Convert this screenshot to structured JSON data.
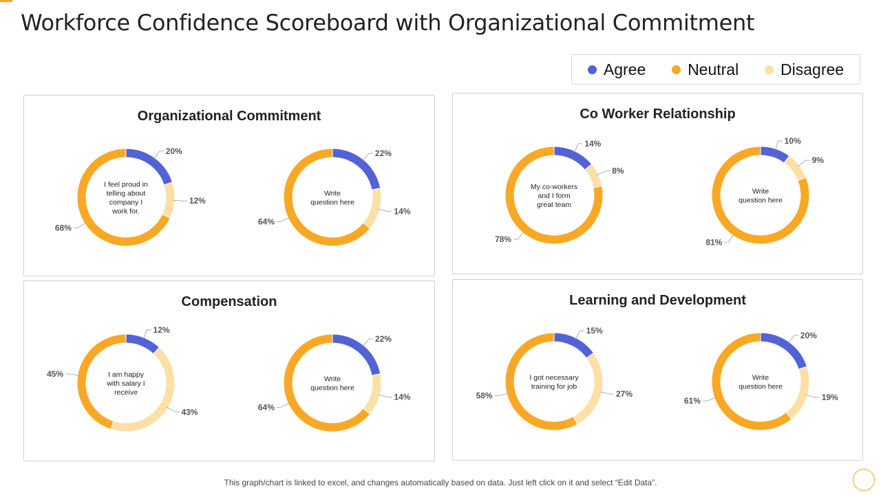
{
  "page": {
    "title": "Workforce Confidence Scoreboard with Organizational Commitment",
    "footer": "This graph/chart is linked to excel, and changes automatically based on data. Just left click on it and select “Edit Data”."
  },
  "legend": {
    "items": [
      {
        "label": "Agree",
        "color": "#5263d6"
      },
      {
        "label": "Neutral",
        "color": "#f9a825"
      },
      {
        "label": "Disagree",
        "color": "#fde0a6"
      }
    ]
  },
  "colors": {
    "agree": "#5263d6",
    "neutral": "#f9a825",
    "disagree": "#fde0a6"
  },
  "panels": [
    {
      "title": "Organizational Commitment"
    },
    {
      "title": "Co Worker Relationship"
    },
    {
      "title": "Compensation"
    },
    {
      "title": "Learning and Development"
    }
  ],
  "chart_data": [
    {
      "type": "pie",
      "panel": "Organizational Commitment",
      "center_text": [
        "I feel proud in",
        "telling about",
        "company I",
        "work for."
      ],
      "categories": [
        "Agree",
        "Disagree",
        "Neutral"
      ],
      "values": [
        20,
        12,
        68
      ],
      "labels": [
        "20%",
        "12%",
        "68%"
      ]
    },
    {
      "type": "pie",
      "panel": "Organizational Commitment",
      "center_text": [
        "Write",
        "question here"
      ],
      "categories": [
        "Agree",
        "Disagree",
        "Neutral"
      ],
      "values": [
        22,
        14,
        64
      ],
      "labels": [
        "22%",
        "14%",
        "64%"
      ]
    },
    {
      "type": "pie",
      "panel": "Co Worker Relationship",
      "center_text": [
        "My co-workers",
        "and I form",
        "great team"
      ],
      "categories": [
        "Agree",
        "Disagree",
        "Neutral"
      ],
      "values": [
        14,
        8,
        78
      ],
      "labels": [
        "14%",
        "8%",
        "78%"
      ]
    },
    {
      "type": "pie",
      "panel": "Co Worker Relationship",
      "center_text": [
        "Write",
        "question here"
      ],
      "categories": [
        "Agree",
        "Disagree",
        "Neutral"
      ],
      "values": [
        10,
        9,
        81
      ],
      "labels": [
        "10%",
        "9%",
        "81%"
      ]
    },
    {
      "type": "pie",
      "panel": "Compensation",
      "center_text": [
        "I am happy",
        "with salary I",
        "receive"
      ],
      "categories": [
        "Agree",
        "Disagree",
        "Neutral"
      ],
      "values": [
        12,
        43,
        45
      ],
      "labels": [
        "12%",
        "43%",
        "45%"
      ]
    },
    {
      "type": "pie",
      "panel": "Compensation",
      "center_text": [
        "Write",
        "question here"
      ],
      "categories": [
        "Agree",
        "Disagree",
        "Neutral"
      ],
      "values": [
        22,
        14,
        64
      ],
      "labels": [
        "22%",
        "14%",
        "64%"
      ]
    },
    {
      "type": "pie",
      "panel": "Learning and Development",
      "center_text": [
        "I got necessary",
        "training for job"
      ],
      "categories": [
        "Agree",
        "Disagree",
        "Neutral"
      ],
      "values": [
        15,
        27,
        58
      ],
      "labels": [
        "15%",
        "27%",
        "58%"
      ]
    },
    {
      "type": "pie",
      "panel": "Learning and Development",
      "center_text": [
        "Write",
        "question here"
      ],
      "categories": [
        "Agree",
        "Disagree",
        "Neutral"
      ],
      "values": [
        20,
        19,
        61
      ],
      "labels": [
        "20%",
        "19%",
        "61%"
      ]
    }
  ]
}
